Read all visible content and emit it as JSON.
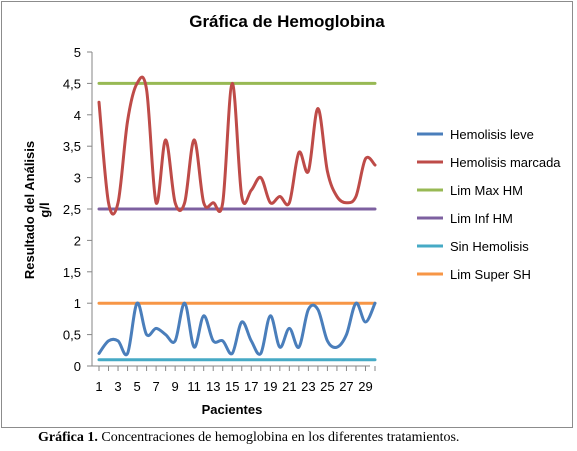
{
  "chart_data": {
    "type": "line",
    "title": "Gráfica de Hemoglobina",
    "xlabel": "Pacientes",
    "ylabel_line1": "Resultado del Análisis",
    "ylabel_line2": "g/l",
    "x": [
      1,
      2,
      3,
      4,
      5,
      6,
      7,
      8,
      9,
      10,
      11,
      12,
      13,
      14,
      15,
      16,
      17,
      18,
      19,
      20,
      21,
      22,
      23,
      24,
      25,
      26,
      27,
      28,
      29,
      30
    ],
    "x_tick_labels": [
      "1",
      "3",
      "5",
      "7",
      "9",
      "11",
      "13",
      "15",
      "17",
      "19",
      "21",
      "23",
      "25",
      "27",
      "29"
    ],
    "x_tick_values": [
      1,
      3,
      5,
      7,
      9,
      11,
      13,
      15,
      17,
      19,
      21,
      23,
      25,
      27,
      29
    ],
    "xlim": [
      1,
      30
    ],
    "ylim": [
      0,
      5
    ],
    "y_ticks": [
      {
        "value": 0,
        "label": "0"
      },
      {
        "value": 0.5,
        "label": "0,5"
      },
      {
        "value": 1,
        "label": "1"
      },
      {
        "value": 1.5,
        "label": "1,5"
      },
      {
        "value": 2,
        "label": "2"
      },
      {
        "value": 2.5,
        "label": "2,5"
      },
      {
        "value": 3,
        "label": "3"
      },
      {
        "value": 3.5,
        "label": "3,5"
      },
      {
        "value": 4,
        "label": "4"
      },
      {
        "value": 4.5,
        "label": "4,5"
      },
      {
        "value": 5,
        "label": "5"
      }
    ],
    "grid": false,
    "legend_position": "right",
    "series": [
      {
        "name": "Hemolisis leve",
        "color": "#4a7ebb",
        "smooth": true,
        "values": [
          0.2,
          0.4,
          0.4,
          0.2,
          1.0,
          0.5,
          0.6,
          0.5,
          0.4,
          1.0,
          0.3,
          0.8,
          0.4,
          0.4,
          0.2,
          0.7,
          0.4,
          0.2,
          0.8,
          0.3,
          0.6,
          0.3,
          0.9,
          0.9,
          0.4,
          0.3,
          0.5,
          1.0,
          0.7,
          1.0
        ]
      },
      {
        "name": "Hemolisis marcada",
        "color": "#be4b48",
        "smooth": true,
        "values": [
          4.2,
          2.6,
          2.6,
          3.9,
          4.5,
          4.4,
          2.6,
          3.6,
          2.6,
          2.6,
          3.6,
          2.6,
          2.6,
          2.6,
          4.5,
          2.7,
          2.8,
          3.0,
          2.6,
          2.7,
          2.6,
          3.4,
          3.1,
          4.1,
          3.1,
          2.7,
          2.6,
          2.7,
          3.3,
          3.2
        ]
      },
      {
        "name": "Lim Max HM",
        "color": "#98b954",
        "smooth": false,
        "values": [
          4.5,
          4.5,
          4.5,
          4.5,
          4.5,
          4.5,
          4.5,
          4.5,
          4.5,
          4.5,
          4.5,
          4.5,
          4.5,
          4.5,
          4.5,
          4.5,
          4.5,
          4.5,
          4.5,
          4.5,
          4.5,
          4.5,
          4.5,
          4.5,
          4.5,
          4.5,
          4.5,
          4.5,
          4.5,
          4.5
        ]
      },
      {
        "name": "Lim Inf HM",
        "color": "#7d60a0",
        "smooth": false,
        "values": [
          2.5,
          2.5,
          2.5,
          2.5,
          2.5,
          2.5,
          2.5,
          2.5,
          2.5,
          2.5,
          2.5,
          2.5,
          2.5,
          2.5,
          2.5,
          2.5,
          2.5,
          2.5,
          2.5,
          2.5,
          2.5,
          2.5,
          2.5,
          2.5,
          2.5,
          2.5,
          2.5,
          2.5,
          2.5,
          2.5
        ]
      },
      {
        "name": "Sin Hemolisis",
        "color": "#46aac5",
        "smooth": false,
        "values": [
          0.1,
          0.1,
          0.1,
          0.1,
          0.1,
          0.1,
          0.1,
          0.1,
          0.1,
          0.1,
          0.1,
          0.1,
          0.1,
          0.1,
          0.1,
          0.1,
          0.1,
          0.1,
          0.1,
          0.1,
          0.1,
          0.1,
          0.1,
          0.1,
          0.1,
          0.1,
          0.1,
          0.1,
          0.1,
          0.1
        ]
      },
      {
        "name": "Lim Super SH",
        "color": "#f79646",
        "smooth": false,
        "values": [
          1,
          1,
          1,
          1,
          1,
          1,
          1,
          1,
          1,
          1,
          1,
          1,
          1,
          1,
          1,
          1,
          1,
          1,
          1,
          1,
          1,
          1,
          1,
          1,
          1,
          1,
          1,
          1,
          1,
          1
        ]
      }
    ]
  },
  "caption": {
    "label": "Gráfica 1.",
    "text": " Concentraciones de hemoglobina en los diferentes tratamientos."
  }
}
